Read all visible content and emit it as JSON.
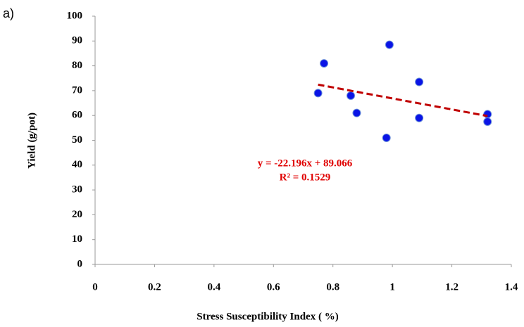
{
  "panel_label": "a)",
  "chart_data": {
    "type": "scatter",
    "x_label": "Stress Susceptibility Index ( %)",
    "y_label": "Yield (g/pot)",
    "x": [
      0.75,
      0.77,
      0.86,
      0.88,
      0.98,
      0.99,
      1.09,
      1.09,
      1.32,
      1.32
    ],
    "values": [
      69,
      81,
      68,
      61,
      51,
      88.5,
      73.5,
      59,
      60.5,
      57.5
    ],
    "color": "#0a14e6",
    "xlim": [
      0,
      1.4
    ],
    "xticks": [
      0,
      0.2,
      0.4,
      0.6,
      0.8,
      1,
      1.2,
      1.4
    ],
    "ylim": [
      0,
      100
    ],
    "yticks": [
      0,
      10,
      20,
      30,
      40,
      50,
      60,
      70,
      80,
      90,
      100
    ],
    "trendline": {
      "x": [
        0.75,
        1.32
      ],
      "y": [
        72.42,
        59.77
      ],
      "color": "#c00000",
      "equation": "y = -22.196x + 89.066",
      "r_squared": "R² = 0.1529"
    }
  }
}
